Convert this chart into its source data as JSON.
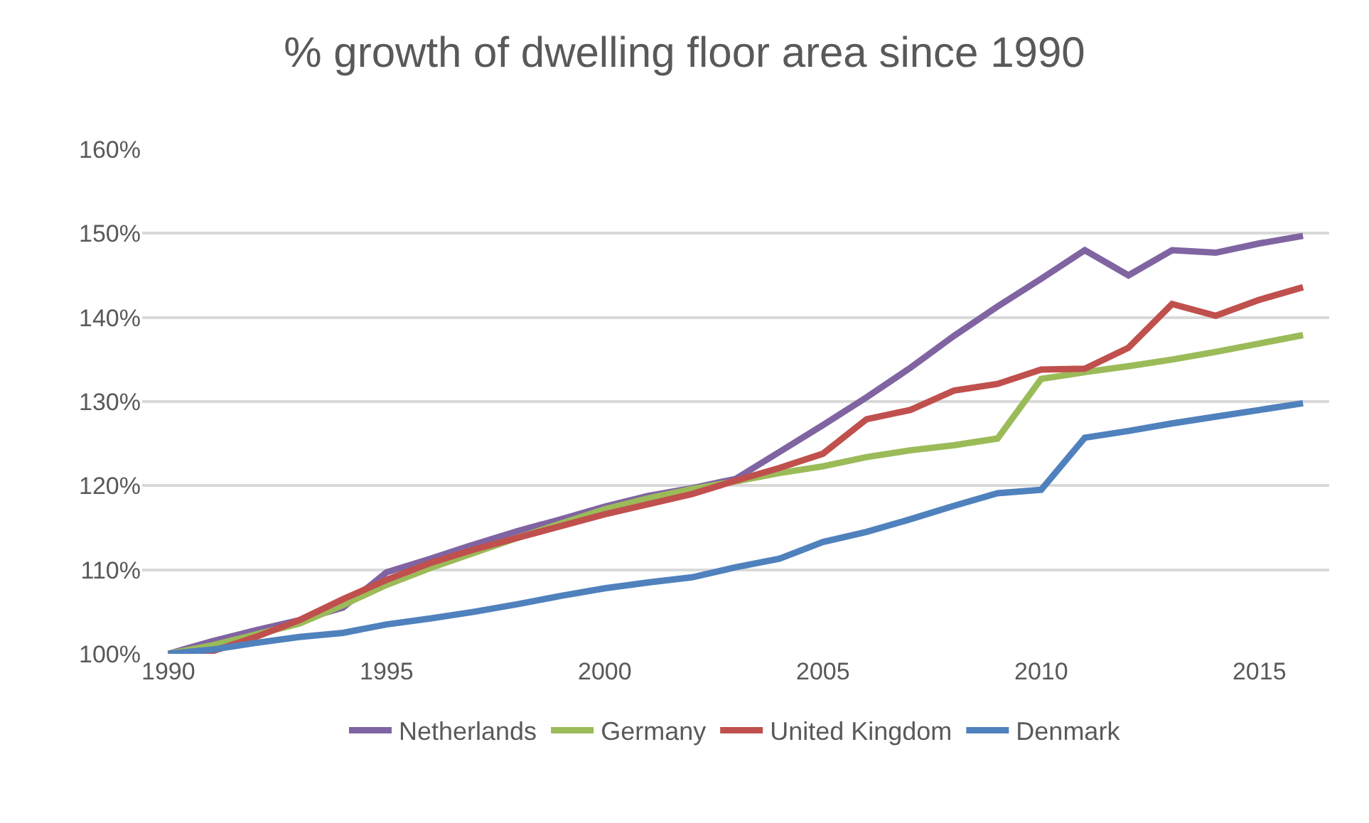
{
  "chart_data": {
    "type": "line",
    "title": "% growth of dwelling floor area since 1990",
    "x": [
      1990,
      1991,
      1992,
      1993,
      1994,
      1995,
      1996,
      1997,
      1998,
      1999,
      2000,
      2001,
      2002,
      2003,
      2004,
      2005,
      2006,
      2007,
      2008,
      2009,
      2010,
      2011,
      2012,
      2013,
      2014,
      2015,
      2016
    ],
    "series": [
      {
        "name": "Netherlands",
        "color": "#8064a2",
        "values": [
          100,
          101.5,
          102.8,
          104,
          105.5,
          109.7,
          111.3,
          113,
          114.6,
          116,
          117.5,
          118.8,
          119.7,
          120.8,
          124,
          127.2,
          130.5,
          134,
          137.8,
          141.3,
          144.6,
          148,
          145,
          148,
          147.7,
          148.8,
          149.7
        ]
      },
      {
        "name": "Germany",
        "color": "#9bbb59",
        "values": [
          100,
          101,
          102.3,
          103.6,
          105.8,
          108.2,
          110.2,
          112,
          113.8,
          115.5,
          117.2,
          118.5,
          119.6,
          120.5,
          121.5,
          122.3,
          123.4,
          124.2,
          124.8,
          125.6,
          132.7,
          133.5,
          134.2,
          135,
          135.9,
          136.9,
          137.9
        ]
      },
      {
        "name": "United Kingdom",
        "color": "#c0504d",
        "values": [
          100,
          100.3,
          102,
          104,
          106.5,
          108.8,
          110.8,
          112.4,
          113.8,
          115.2,
          116.6,
          117.8,
          119,
          120.6,
          122.1,
          123.8,
          127.9,
          129,
          131.3,
          132.1,
          133.8,
          133.9,
          136.4,
          141.6,
          140.2,
          142.1,
          143.6
        ]
      },
      {
        "name": "Denmark",
        "color": "#4f81bd",
        "values": [
          100,
          100.5,
          101.3,
          102,
          102.5,
          103.5,
          104.2,
          105,
          105.9,
          106.9,
          107.8,
          108.5,
          109.1,
          110.3,
          111.3,
          113.3,
          114.5,
          116,
          117.6,
          119.1,
          119.5,
          125.7,
          126.5,
          127.4,
          128.2,
          129,
          129.8
        ]
      }
    ],
    "xlim": [
      1989.4,
      2016.6
    ],
    "xticks": [
      1990,
      1995,
      2000,
      2005,
      2010,
      2015
    ],
    "ylim": [
      100,
      160
    ],
    "yticks": [
      {
        "value": 100,
        "label": "100%"
      },
      {
        "value": 110,
        "label": "110%"
      },
      {
        "value": 120,
        "label": "120%"
      },
      {
        "value": 130,
        "label": "130%"
      },
      {
        "value": 140,
        "label": "140%"
      },
      {
        "value": 150,
        "label": "150%"
      },
      {
        "value": 160,
        "label": "160%"
      }
    ],
    "grid": "y",
    "legend": "bottom",
    "line_style": "solid",
    "marker": "none"
  }
}
